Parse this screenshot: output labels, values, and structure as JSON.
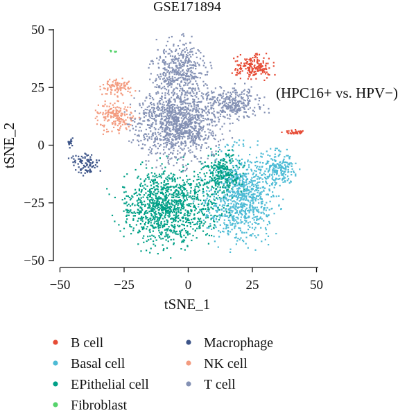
{
  "chart_data": {
    "type": "scatter",
    "title": "GSE171894",
    "xlabel": "tSNE_1",
    "ylabel": "tSNE_2",
    "xlim": [
      -52,
      52
    ],
    "ylim": [
      -52,
      52
    ],
    "xticks": [
      -50,
      -25,
      0,
      25,
      50
    ],
    "yticks": [
      50,
      25,
      0,
      -25,
      -50
    ],
    "xtick_labels": [
      "−50",
      "−25",
      "0",
      "25",
      "50"
    ],
    "ytick_labels": [
      "50",
      "25",
      "0",
      "−25",
      "−50"
    ],
    "annotation": "(HPC16+ vs. HPV−)",
    "grid": false,
    "legend_position": "bottom",
    "series": [
      {
        "name": "B cell",
        "color": "#E64B35",
        "clusters": [
          {
            "cx": 25,
            "cy": 34,
            "rx": 6.5,
            "ry": 4.5,
            "n": 180
          },
          {
            "cx": 42,
            "cy": 5.5,
            "rx": 3.5,
            "ry": 1.2,
            "n": 35
          }
        ]
      },
      {
        "name": "Basal cell",
        "color": "#4DBBD5",
        "clusters": [
          {
            "cx": 20,
            "cy": -22,
            "rx": 12,
            "ry": 17,
            "n": 900
          },
          {
            "cx": 35,
            "cy": -10,
            "rx": 6,
            "ry": 6,
            "n": 200
          }
        ]
      },
      {
        "name": "EPithelial cell",
        "color": "#00A087",
        "clusters": [
          {
            "cx": -8,
            "cy": -27,
            "rx": 16,
            "ry": 14,
            "n": 1100
          },
          {
            "cx": 13,
            "cy": -12,
            "rx": 7,
            "ry": 8,
            "n": 250
          }
        ]
      },
      {
        "name": "Fibroblast",
        "color": "#55D36B",
        "clusters": [
          {
            "cx": -29.5,
            "cy": 40.5,
            "rx": 1.4,
            "ry": 0.5,
            "n": 6
          }
        ]
      },
      {
        "name": "Macrophage",
        "color": "#3C5488",
        "clusters": [
          {
            "cx": -40,
            "cy": -8,
            "rx": 5,
            "ry": 4.5,
            "n": 90
          },
          {
            "cx": -46,
            "cy": 1,
            "rx": 1.5,
            "ry": 1.5,
            "n": 20
          }
        ]
      },
      {
        "name": "NK cell",
        "color": "#F39B7F",
        "clusters": [
          {
            "cx": -28,
            "cy": 13,
            "rx": 6,
            "ry": 6.5,
            "n": 180
          },
          {
            "cx": -28,
            "cy": 25,
            "rx": 5,
            "ry": 3.5,
            "n": 90
          }
        ]
      },
      {
        "name": "T cell",
        "color": "#8491B4",
        "clusters": [
          {
            "cx": -4,
            "cy": 10,
            "rx": 14,
            "ry": 14,
            "n": 1200
          },
          {
            "cx": -3,
            "cy": 33,
            "rx": 9,
            "ry": 11,
            "n": 400
          },
          {
            "cx": 18,
            "cy": 18,
            "rx": 10,
            "ry": 6,
            "n": 300
          }
        ]
      }
    ]
  }
}
